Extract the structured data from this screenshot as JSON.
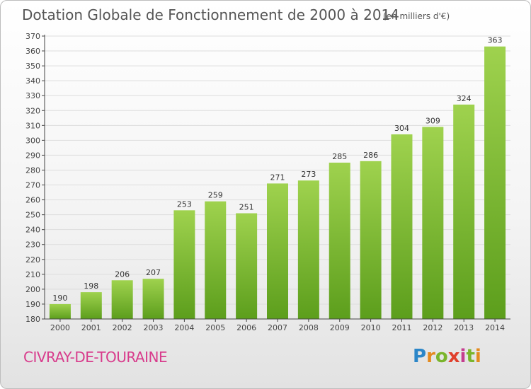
{
  "header": {
    "title": "Dotation Globale de Fonctionnement de 2000 à 2014",
    "unit": "(en milliers d'€)"
  },
  "footer": {
    "commune": "CIVRAY-DE-TOURAINE",
    "logo": "Proxiti"
  },
  "colors": {
    "bar_light": "#9fd24e",
    "bar_dark": "#5c9e1c",
    "commune_text": "#d83c8c",
    "axis": "#444444",
    "grid": "#dddddd"
  },
  "chart_data": {
    "type": "bar",
    "title": "Dotation Globale de Fonctionnement de 2000 à 2014",
    "xlabel": "",
    "ylabel": "",
    "categories": [
      "2000",
      "2001",
      "2002",
      "2003",
      "2004",
      "2005",
      "2006",
      "2007",
      "2008",
      "2009",
      "2010",
      "2011",
      "2012",
      "2013",
      "2014"
    ],
    "values": [
      190,
      198,
      206,
      207,
      253,
      259,
      251,
      271,
      273,
      285,
      286,
      304,
      309,
      324,
      363
    ],
    "ylim": [
      180,
      370
    ],
    "ytick_step": 10,
    "grid": true
  }
}
